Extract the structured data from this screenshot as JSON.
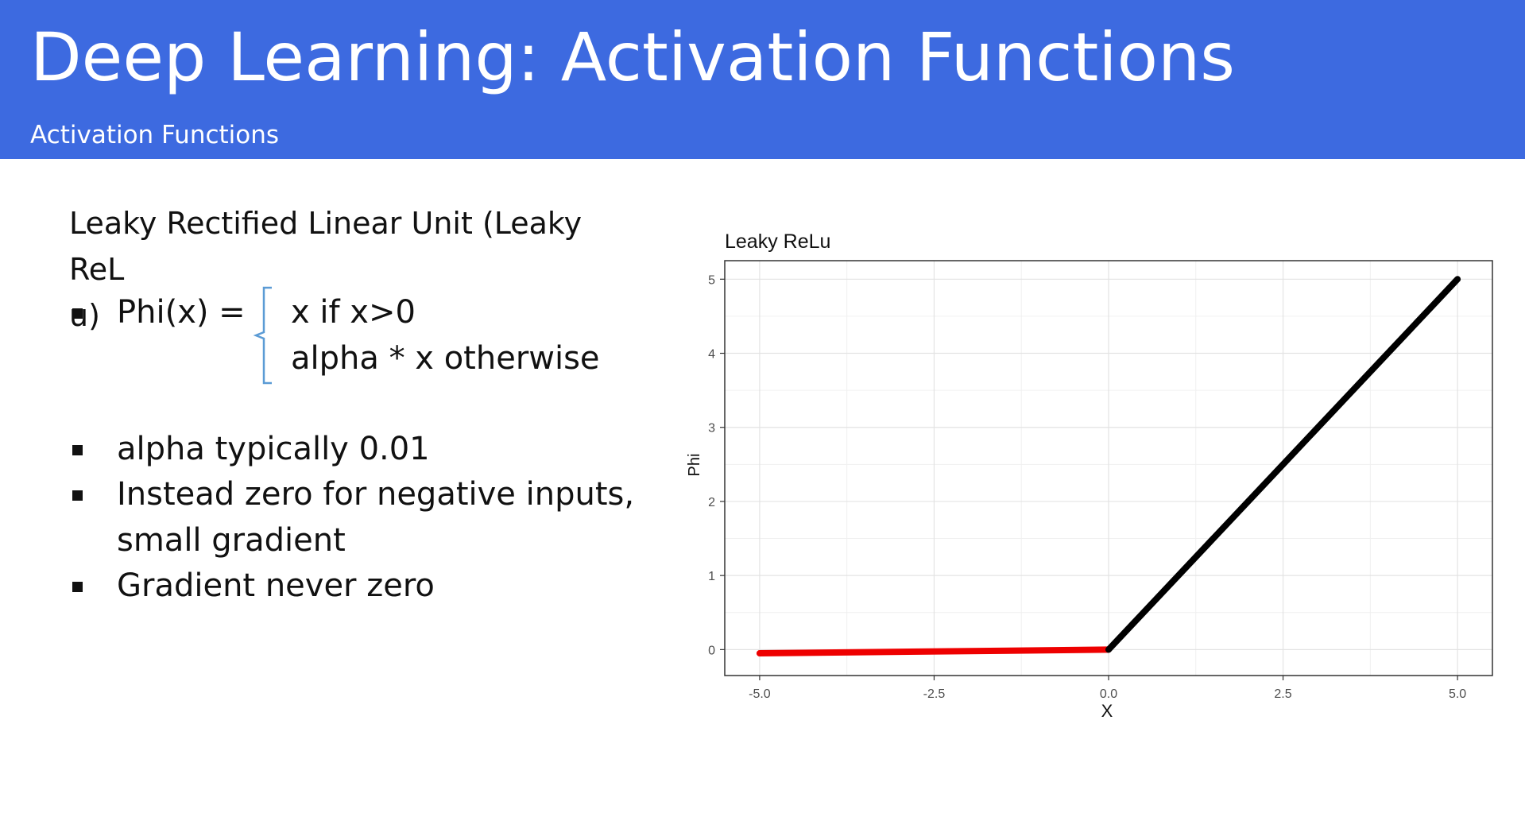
{
  "slide": {
    "title": "Deep Learning: Activation Functions",
    "subtitle": "Activation Functions",
    "heading": "Leaky Rectified Linear Unit (Leaky ReLu)",
    "formula": {
      "lhs": "Phi(x) =",
      "case1": "x if x>0",
      "case2": "alpha * x otherwise"
    },
    "bullets": [
      "alpha typically 0.01",
      "Instead zero for negative inputs,",
      "small gradient",
      "Gradient never zero"
    ],
    "colors": {
      "header": "#3d6ae0",
      "brace": "#5b9bd5",
      "negative_line": "#ee0000",
      "positive_line": "#000000"
    }
  },
  "chart_data": {
    "type": "line",
    "title": "Leaky ReLu",
    "xlabel": "X",
    "ylabel": "Phi",
    "xlim": [
      -5.0,
      5.0
    ],
    "ylim": [
      0,
      5
    ],
    "xticks": [
      "-5.0",
      "-2.5",
      "0.0",
      "2.5",
      "5.0"
    ],
    "yticks": [
      "0",
      "1",
      "2",
      "3",
      "4",
      "5"
    ],
    "grid": true,
    "series": [
      {
        "color": "#ee0000",
        "x": [
          -5.0,
          0.0
        ],
        "y": [
          -0.05,
          0.0
        ]
      },
      {
        "color": "#000000",
        "x": [
          0.0,
          5.0
        ],
        "y": [
          0.0,
          5.0
        ]
      }
    ]
  }
}
